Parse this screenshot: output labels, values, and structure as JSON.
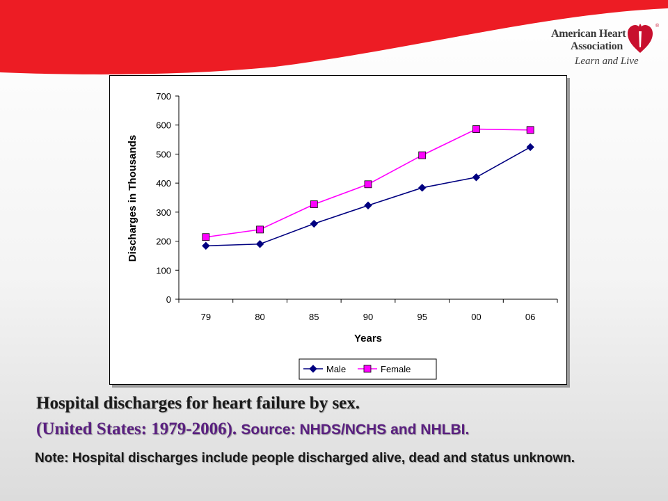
{
  "logo": {
    "line1": "American Heart",
    "line2": "Association",
    "tagline": "Learn and Live",
    "registered": "®",
    "accent_color": "#c8102e"
  },
  "caption": {
    "line1": "Hospital discharges for heart failure by sex.",
    "line2": "(United States: 1979-2006).",
    "source": "Source: NHDS/NCHS and NHLBI.",
    "note": "Note: Hospital discharges include people discharged alive, dead and status unknown."
  },
  "chart_data": {
    "type": "line",
    "categories": [
      "79",
      "80",
      "85",
      "90",
      "95",
      "00",
      "06"
    ],
    "series": [
      {
        "name": "Male",
        "values": [
          184,
          190,
          260,
          323,
          384,
          420,
          524
        ],
        "color": "#000080",
        "marker": "diamond"
      },
      {
        "name": "Female",
        "values": [
          214,
          240,
          327,
          396,
          496,
          586,
          583
        ],
        "color": "#ff00ff",
        "marker": "square"
      }
    ],
    "xlabel": "Years",
    "ylabel": "Discharges in Thousands",
    "ylim": [
      0,
      700
    ],
    "yticks": [
      0,
      100,
      200,
      300,
      400,
      500,
      600,
      700
    ],
    "grid": false,
    "legend": "bottom"
  }
}
